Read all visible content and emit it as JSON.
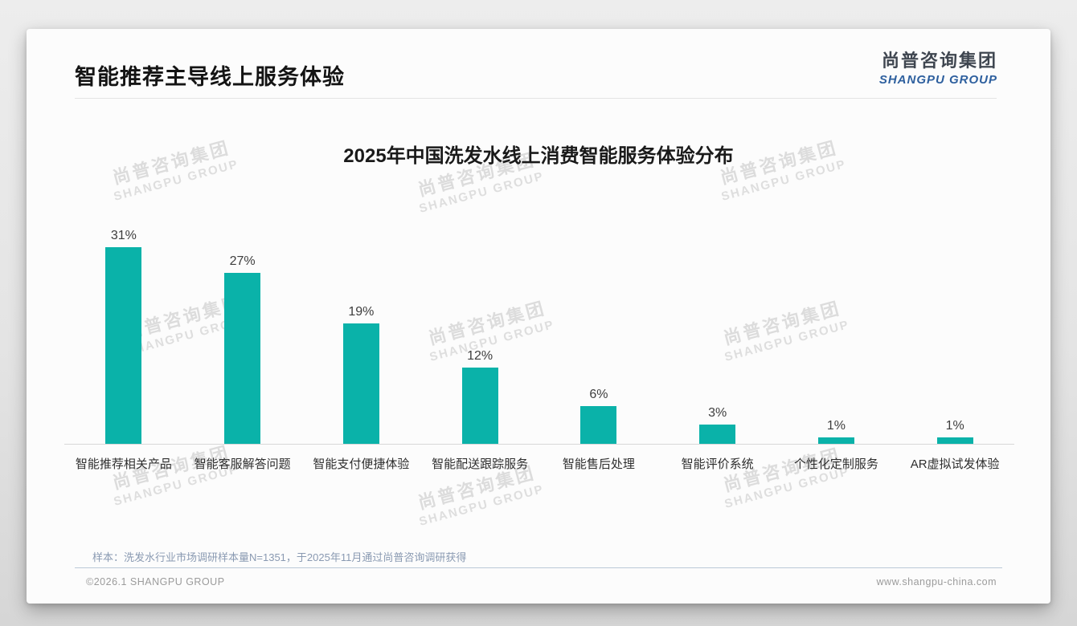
{
  "page": {
    "title": "智能推荐主导线上服务体验",
    "logo": {
      "cn": "尚普咨询集团",
      "en": "SHANGPU GROUP"
    },
    "watermark": {
      "cn": "尚普咨询集团",
      "en": "SHANGPU GROUP"
    },
    "note": "样本：洗发水行业市场调研样本量N=1351，于2025年11月通过尚普咨询调研获得",
    "footer": {
      "copyright": "©2026.1 SHANGPU GROUP",
      "website": "www.shangpu-china.com"
    }
  },
  "chart_data": {
    "type": "bar",
    "title": "2025年中国洗发水线上消费智能服务体验分布",
    "categories": [
      "智能推荐相关产品",
      "智能客服解答问题",
      "智能支付便捷体验",
      "智能配送跟踪服务",
      "智能售后处理",
      "智能评价系统",
      "个性化定制服务",
      "AR虚拟试发体验"
    ],
    "values": [
      31,
      27,
      19,
      12,
      6,
      3,
      1,
      1
    ],
    "data_labels": [
      "31%",
      "27%",
      "19%",
      "12%",
      "6%",
      "3%",
      "1%",
      "1%"
    ],
    "unit": "%",
    "bar_color": "#0ab2a9",
    "ylim": [
      0,
      35
    ],
    "grid": false,
    "legend": "none",
    "xlabel": "",
    "ylabel": ""
  }
}
